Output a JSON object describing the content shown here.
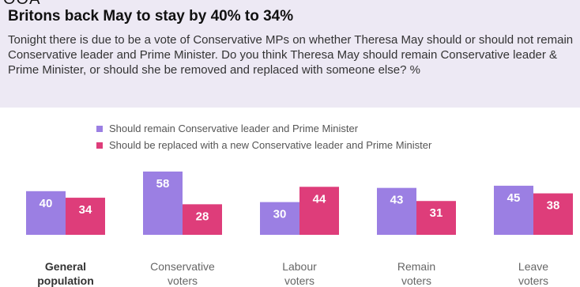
{
  "header": {
    "top_clip": "OOA",
    "title": "Britons back May to stay by 40% to 34%",
    "question": "Tonight there is due to be a vote of Conservative MPs on whether Theresa May should or should not remain Conservative leader and Prime Minister. Do you think Theresa May should remain Conservative leader & Prime Minister, or should she be removed and replaced with someone else? %"
  },
  "colors": {
    "remain": "#9b7fe3",
    "replace": "#de3d7a",
    "header_bg": "#ede9f4"
  },
  "chart_data": {
    "type": "bar",
    "categories": [
      [
        "General",
        "population"
      ],
      [
        "Conservative",
        "voters"
      ],
      [
        "Labour",
        "voters"
      ],
      [
        "Remain",
        "voters"
      ],
      [
        "Leave",
        "voters"
      ]
    ],
    "bold_category": 0,
    "series": [
      {
        "name": "Should remain Conservative leader and Prime Minister",
        "values": [
          40,
          58,
          30,
          43,
          45
        ]
      },
      {
        "name": "Should be replaced with a new Conservative leader and Prime Minister",
        "values": [
          34,
          28,
          44,
          31,
          38
        ]
      }
    ],
    "legend_position": "top",
    "ylim": [
      0,
      60
    ]
  }
}
